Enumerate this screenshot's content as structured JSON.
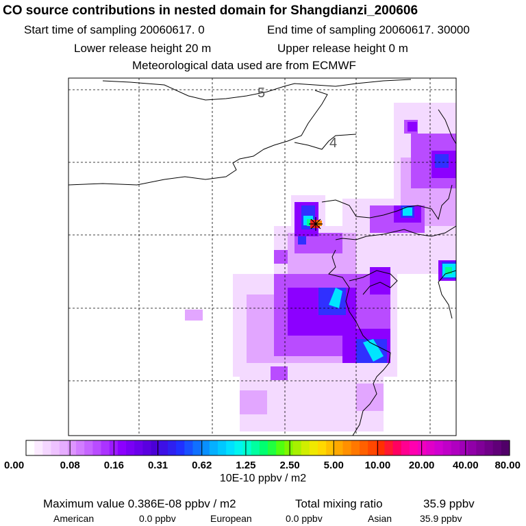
{
  "header": {
    "title": "CO  source contributions in nested domain for Shangdianzi_200606",
    "start_time": "Start time of sampling 20060617.     0",
    "end_time": "End time of sampling 20060617. 30000",
    "lower_release": "Lower release height   20 m",
    "upper_release": "Upper release height    0 m",
    "meteo": "Meteorological data used are from ECMWF"
  },
  "colors": {
    "dark_purple": "#8a00e6",
    "mid_purple": "#b040ff",
    "light_purple": "#d890ff",
    "pale_purple": "#f0d0ff",
    "blue": "#3030ff",
    "cyan": "#00e5ff",
    "green": "#00ff80",
    "red": "#ff2020"
  },
  "chart_data": {
    "type": "heatmap",
    "map_labels": [
      "5",
      "4"
    ],
    "colorbar": {
      "tick_labels": [
        "0.00",
        "0.08",
        "0.16",
        "0.31",
        "0.62",
        "1.25",
        "2.50",
        "5.00",
        "10.00",
        "20.00",
        "40.00",
        "80.00"
      ],
      "unit": "10E-10 ppbv / m2",
      "colors": [
        "#ffffff",
        "#fbeaff",
        "#f4d6ff",
        "#eec2ff",
        "#e6adff",
        "#dd95ff",
        "#d27dff",
        "#c665ff",
        "#b94cff",
        "#ab33ff",
        "#9c1aff",
        "#8c00ff",
        "#7a00f5",
        "#6a00eb",
        "#5a00e0",
        "#4b00d6",
        "#3d10e6",
        "#2e20f0",
        "#2030ff",
        "#1850ff",
        "#1070ff",
        "#0990ff",
        "#05b0ff",
        "#00c8ff",
        "#00e0ff",
        "#00f5f0",
        "#00ffd0",
        "#00ffa0",
        "#00ff70",
        "#20ff40",
        "#50ff10",
        "#80f500",
        "#a8f000",
        "#d0ee00",
        "#f0e800",
        "#ffd800",
        "#ffc000",
        "#ffa800",
        "#ff9000",
        "#ff7800",
        "#ff6000",
        "#ff4800",
        "#ff3000",
        "#ff1830",
        "#ff0060",
        "#ff0090",
        "#ff00b0",
        "#f000c0",
        "#e000c8",
        "#d000d0",
        "#c000c8",
        "#b000c0",
        "#a000b8",
        "#9000a8",
        "#800098",
        "#700088",
        "#600078",
        "#500068"
      ]
    },
    "plumes": [
      {
        "region": "receptor",
        "level": "max"
      },
      {
        "region": "south-east",
        "level": "high"
      }
    ]
  },
  "footer": {
    "max_label": "Maximum value  0.386E-08 ppbv / m2",
    "total_label": "Total mixing ratio",
    "total_value": "35.9 ppbv",
    "american_label": "American",
    "american_value": "0.0 ppbv",
    "european_label": "European",
    "european_value": "0.0 ppbv",
    "asian_label": "Asian",
    "asian_value": "35.9 ppbv"
  }
}
